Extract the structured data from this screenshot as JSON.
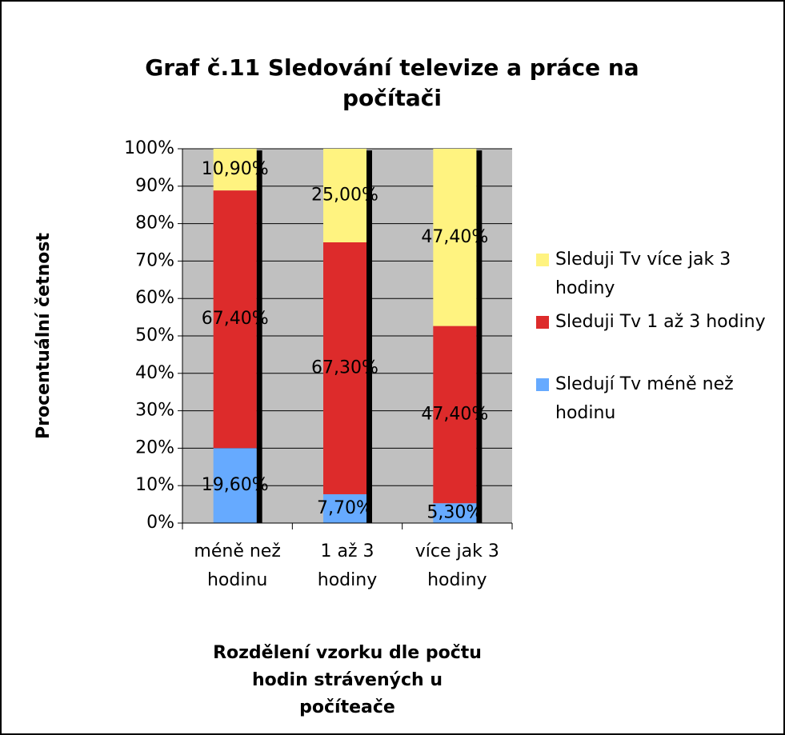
{
  "chart_data": {
    "type": "bar",
    "stacked": "percent",
    "title": "Graf č.11 Sledování televize a práce na počítači",
    "x_label": "Rozdělení vzorku dle počtu hodin strávených u počíteače",
    "y_label": "Procentuální četnost",
    "categories": [
      "méně než hodinu",
      "1 až 3 hodiny",
      "více jak 3 hodiny"
    ],
    "series": [
      {
        "name": "Sledují Tv méně než hodinu",
        "color": "#66aaff",
        "values": [
          19.6,
          7.7,
          5.3
        ],
        "value_labels": [
          "19,60%",
          "7,70%",
          "5,30%"
        ]
      },
      {
        "name": "Sleduji Tv 1 až 3 hodiny",
        "color": "#dd2b2b",
        "values": [
          67.4,
          67.3,
          47.4
        ],
        "value_labels": [
          "67,40%",
          "67,30%",
          "47,40%"
        ]
      },
      {
        "name": "Sleduji Tv více jak 3 hodiny",
        "color": "#fff380",
        "values": [
          10.9,
          25.0,
          47.4
        ],
        "value_labels": [
          "10,90%",
          "25,00%",
          "47,40%"
        ]
      }
    ],
    "ylim": [
      0,
      100
    ],
    "yticks": [
      {
        "value": 0,
        "label": "0%"
      },
      {
        "value": 10,
        "label": "10%"
      },
      {
        "value": 20,
        "label": "20%"
      },
      {
        "value": 30,
        "label": "30%"
      },
      {
        "value": 40,
        "label": "40%"
      },
      {
        "value": 50,
        "label": "50%"
      },
      {
        "value": 60,
        "label": "60%"
      },
      {
        "value": 70,
        "label": "70%"
      },
      {
        "value": 80,
        "label": "80%"
      },
      {
        "value": 90,
        "label": "90%"
      },
      {
        "value": 100,
        "label": "100%"
      }
    ],
    "grid": true,
    "legend": "right",
    "plot_background": "#c0c0c0"
  }
}
